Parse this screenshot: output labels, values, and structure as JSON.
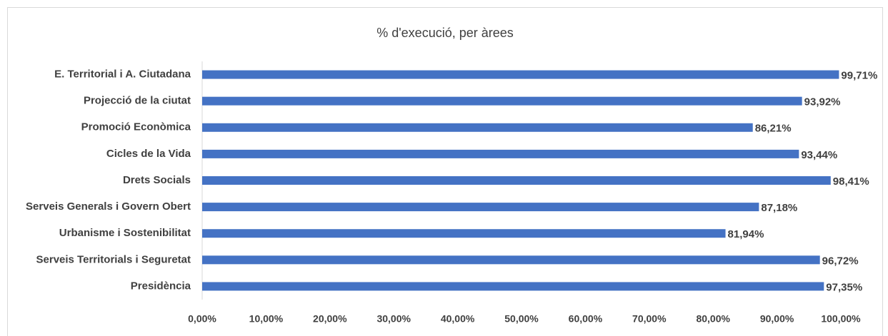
{
  "chart_data": {
    "type": "bar",
    "orientation": "horizontal",
    "title": "% d'execució, per àrees",
    "categories": [
      "E. Territorial i A. Ciutadana",
      "Projecció de la ciutat",
      "Promoció Econòmica",
      "Cicles de la Vida",
      "Drets Socials",
      "Serveis Generals i Govern Obert",
      "Urbanisme i Sostenibilitat",
      "Serveis Territorials i Seguretat",
      "Presidència"
    ],
    "values": [
      99.71,
      93.92,
      86.21,
      93.44,
      98.41,
      87.18,
      81.94,
      96.72,
      97.35
    ],
    "value_labels": [
      "99,71%",
      "93,92%",
      "86,21%",
      "93,44%",
      "98,41%",
      "87,18%",
      "81,94%",
      "96,72%",
      "97,35%"
    ],
    "color": "#4472c4",
    "xlim": [
      0,
      100
    ],
    "xticks": [
      {
        "value": 0,
        "label": "0,00%"
      },
      {
        "value": 10,
        "label": "10,00%"
      },
      {
        "value": 20,
        "label": "20,00%"
      },
      {
        "value": 30,
        "label": "30,00%"
      },
      {
        "value": 40,
        "label": "40,00%"
      },
      {
        "value": 50,
        "label": "50,00%"
      },
      {
        "value": 60,
        "label": "60,00%"
      },
      {
        "value": 70,
        "label": "70,00%"
      },
      {
        "value": 80,
        "label": "80,00%"
      },
      {
        "value": 90,
        "label": "90,00%"
      },
      {
        "value": 100,
        "label": "100,00%"
      }
    ],
    "grid": false
  }
}
